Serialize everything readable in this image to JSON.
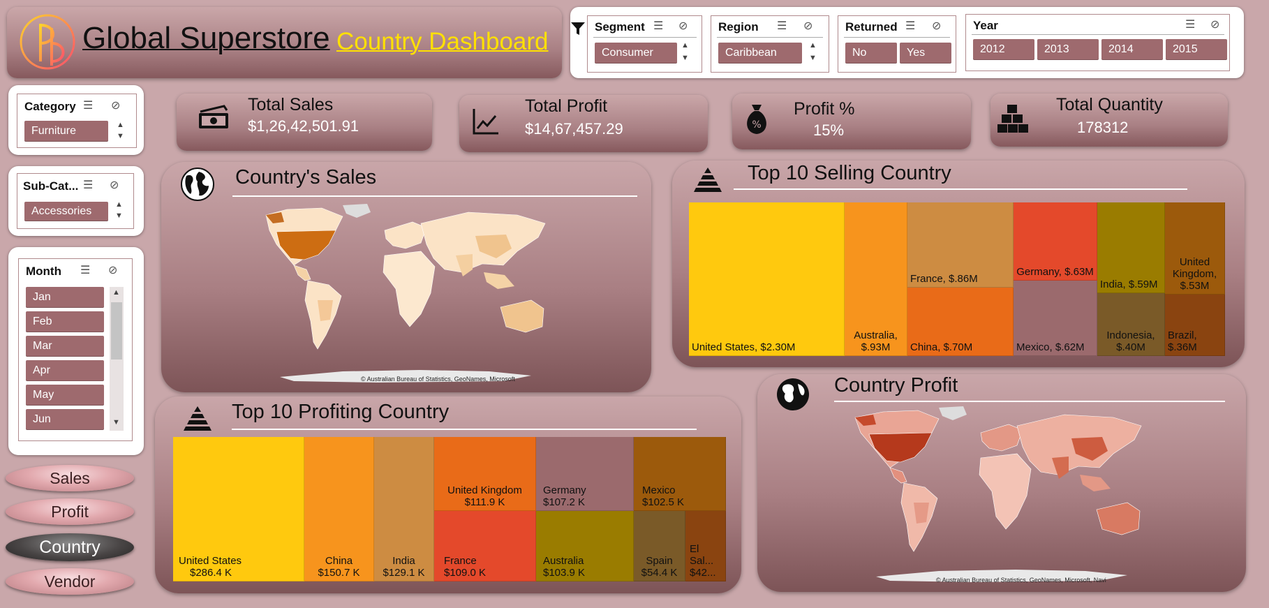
{
  "header": {
    "title": "Global Superstore",
    "subtitle": "Country Dashboard"
  },
  "filters": {
    "segment": {
      "title": "Segment",
      "selected": "Consumer"
    },
    "region": {
      "title": "Region",
      "selected": "Caribbean"
    },
    "returned": {
      "title": "Returned",
      "options": [
        "No",
        "Yes"
      ]
    },
    "year": {
      "title": "Year",
      "options": [
        "2012",
        "2013",
        "2014",
        "2015"
      ]
    },
    "category": {
      "title": "Category",
      "selected": "Furniture"
    },
    "subcategory": {
      "title": "Sub-Cat...",
      "selected": "Accessories"
    },
    "month": {
      "title": "Month",
      "options": [
        "Jan",
        "Feb",
        "Mar",
        "Apr",
        "May",
        "Jun"
      ]
    }
  },
  "nav": {
    "sales": "Sales",
    "profit": "Profit",
    "country": "Country",
    "vendor": "Vendor"
  },
  "kpis": {
    "total_sales": {
      "label": "Total Sales",
      "value": "$1,26,42,501.91"
    },
    "total_profit": {
      "label": "Total Profit",
      "value": "$14,67,457.29"
    },
    "profit_pct": {
      "label": "Profit %",
      "value": "15%"
    },
    "total_quantity": {
      "label": "Total Quantity",
      "value": "178312"
    }
  },
  "sections": {
    "country_sales": "Country's Sales",
    "top_selling": "Top 10 Selling Country",
    "top_profiting": "Top 10 Profiting Country",
    "country_profit": "Country Profit"
  },
  "map_attribution": {
    "sales": "© Australian Bureau of Statistics, GeoNames, Microsoft",
    "profit": "© Australian Bureau of Statistics, GeoNames, Microsoft, Navi"
  },
  "icons": {
    "money": "money-icon",
    "trend": "trend-chart-icon",
    "percent_bag": "money-bag-icon",
    "boxes": "boxes-icon",
    "globe": "globe-icon",
    "pyramid": "pyramid-icon",
    "filter": "filter-icon"
  },
  "colors": {
    "tile_yellow": "#ffc90e",
    "tile_orange": "#f7941d",
    "tile_tan": "#cd8c42",
    "tile_redorange": "#e4492b",
    "tile_mauve": "#9b6a6d",
    "tile_olive": "#9a7c00",
    "tile_brown": "#9c5a0c",
    "tile_darkolive": "#7a5a28",
    "tile_darkbrown": "#8a4410",
    "tile_orange2": "#e96b18"
  },
  "chart_data": [
    {
      "type": "treemap",
      "title": "Top 10 Selling Country",
      "categories": [
        "United States",
        "Australia",
        "France",
        "China",
        "Germany",
        "Mexico",
        "India",
        "Indonesia",
        "United Kingdom",
        "Brazil"
      ],
      "values": [
        2.3,
        0.93,
        0.86,
        0.7,
        0.63,
        0.62,
        0.59,
        0.4,
        0.53,
        0.36
      ],
      "labels": [
        "United States, $2.30M",
        "Australia, $.93M",
        "France, $.86M",
        "China, $.70M",
        "Germany, $.63M",
        "Mexico, $.62M",
        "India, $.59M",
        "Indonesia, $.40M",
        "United Kingdom, $.53M",
        "Brazil, $.36M"
      ],
      "unit": "$M"
    },
    {
      "type": "treemap",
      "title": "Top 10 Profiting Country",
      "categories": [
        "United States",
        "China",
        "India",
        "United Kingdom",
        "France",
        "Germany",
        "Australia",
        "Mexico",
        "Spain",
        "El Sal..."
      ],
      "values": [
        286.4,
        150.7,
        129.1,
        111.9,
        109.0,
        107.2,
        103.9,
        102.5,
        54.4,
        42
      ],
      "labels": [
        "$286.4 K",
        "$150.7 K",
        "$129.1 K",
        "$111.9 K",
        "$109.0 K",
        "$107.2 K",
        "$103.9 K",
        "$102.5 K",
        "$54.4 K",
        "$42..."
      ],
      "unit": "$K"
    }
  ]
}
